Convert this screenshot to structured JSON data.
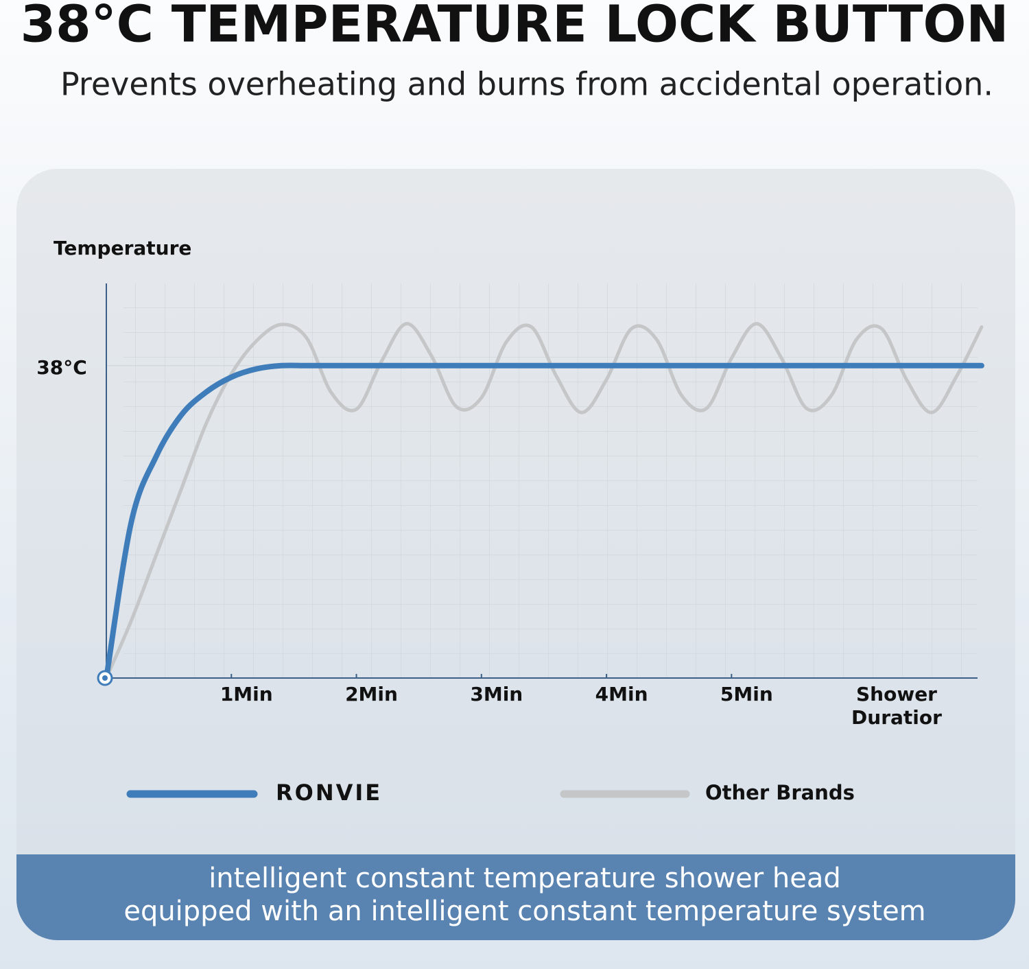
{
  "header": {
    "title": "38°C TEMPERATURE LOCK BUTTON",
    "subtitle": "Prevents overheating and burns from accidental operation."
  },
  "chart_data": {
    "type": "line",
    "ylabel": "Temperature",
    "xlabel": "Shower Duratior",
    "x": [
      0,
      0.2,
      0.4,
      0.6,
      0.8,
      1.0,
      1.2,
      1.4,
      1.6,
      1.8,
      2.0,
      2.2,
      2.4,
      2.6,
      2.8,
      3.0,
      3.2,
      3.4,
      3.6,
      3.8,
      4.0,
      4.2,
      4.4,
      4.6,
      4.8,
      5.0,
      5.2,
      5.4,
      5.6,
      5.8,
      6.0,
      6.2,
      6.4,
      6.6,
      6.8,
      7.0
    ],
    "series": [
      {
        "name": "RONVIE",
        "color": "#3f7cba",
        "values": [
          0,
          19,
          27,
          32,
          34.8,
          36.6,
          37.6,
          38,
          38,
          38,
          38,
          38,
          38,
          38,
          38,
          38,
          38,
          38,
          38,
          38,
          38,
          38,
          38,
          38,
          38,
          38,
          38,
          38,
          38,
          38,
          38,
          38,
          38,
          38,
          38,
          38
        ]
      },
      {
        "name": "Other Brands",
        "color": "#c4c6c8",
        "values": [
          0,
          7,
          15,
          23,
          31,
          37,
          41,
          43,
          41.4,
          34.7,
          32.7,
          38.5,
          43.1,
          39.2,
          33.0,
          34.1,
          40.9,
          42.7,
          36.7,
          32.3,
          36.3,
          42.5,
          41.2,
          34.4,
          32.8,
          38.9,
          43.1,
          38.9,
          32.8,
          34.4,
          41.2,
          42.5,
          36.3,
          32.3,
          36.7,
          42.7
        ]
      }
    ],
    "xlim": [
      0,
      7.05
    ],
    "ylim": [
      0,
      48
    ],
    "xticks": [
      {
        "value": 1,
        "label": "1Min"
      },
      {
        "value": 2,
        "label": "2Min"
      },
      {
        "value": 3,
        "label": "3Min"
      },
      {
        "value": 4,
        "label": "4Min"
      },
      {
        "value": 5,
        "label": "5Min"
      }
    ],
    "yticks": [
      {
        "value": 38,
        "label": "38°C"
      }
    ],
    "grid": true
  },
  "footer": {
    "lines": [
      "intelligent constant temperature shower head",
      "equipped with an intelligent constant temperature system"
    ]
  }
}
